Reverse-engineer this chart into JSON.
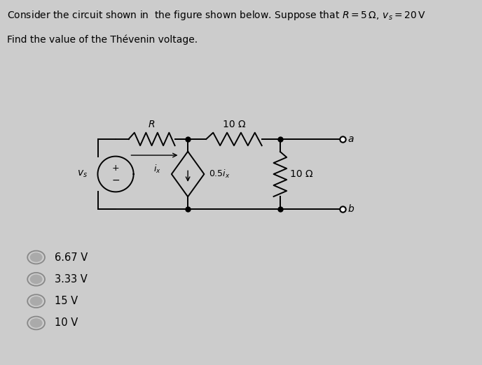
{
  "bg_color": "#cccccc",
  "title_line1": "Consider the circuit shown in  the figure shown below. Suppose that $R = 5\\,\\Omega,\\, v_s = 20\\,\\mathrm{V}$",
  "title_line2": "Find the value of the Thévenin voltage.",
  "options": [
    "6.67 V",
    "3.33 V",
    "15 V",
    "10 V"
  ],
  "option_selected": -1,
  "vs_label": "$v_s$",
  "R_label": "R",
  "h10_label": "10 Ω",
  "v10_label": "10 Ω",
  "dep_label": "0.5$i_x$",
  "ix_label": "$i_x$",
  "a_label": "a",
  "b_label": "b",
  "circuit_bg": "#cccccc"
}
